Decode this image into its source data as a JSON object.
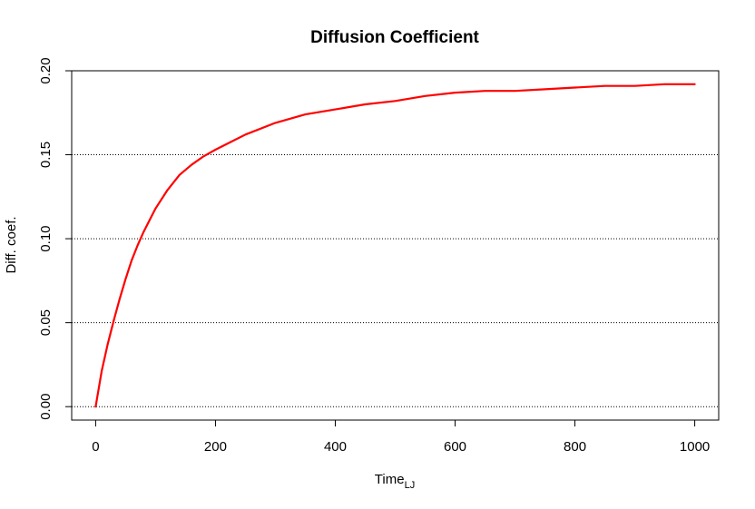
{
  "chart_data": {
    "type": "line",
    "title": "Diffusion Coefficient",
    "xlabel": "Time",
    "xlabel_subscript": "LJ",
    "ylabel": "Diff. coef.",
    "xlim": [
      -40,
      1040
    ],
    "ylim": [
      -0.008,
      0.2
    ],
    "x_ticks": [
      0,
      200,
      400,
      600,
      800,
      1000
    ],
    "y_ticks": [
      0.0,
      0.05,
      0.1,
      0.15,
      0.2
    ],
    "x_tick_labels": [
      "0",
      "200",
      "400",
      "600",
      "800",
      "1000"
    ],
    "y_tick_labels": [
      "0.00",
      "0.05",
      "0.10",
      "0.15",
      "0.20"
    ],
    "grid": "horizontal-dotted",
    "series": [
      {
        "color": "#ff0000",
        "x": [
          0,
          10,
          20,
          30,
          40,
          50,
          60,
          70,
          80,
          100,
          120,
          140,
          160,
          180,
          200,
          250,
          300,
          350,
          400,
          450,
          500,
          550,
          600,
          650,
          700,
          750,
          800,
          850,
          900,
          950,
          1000
        ],
        "y": [
          0.0,
          0.021,
          0.037,
          0.051,
          0.064,
          0.076,
          0.087,
          0.096,
          0.104,
          0.118,
          0.129,
          0.138,
          0.144,
          0.149,
          0.153,
          0.162,
          0.169,
          0.174,
          0.177,
          0.18,
          0.182,
          0.185,
          0.187,
          0.188,
          0.188,
          0.189,
          0.19,
          0.191,
          0.191,
          0.192,
          0.192
        ]
      }
    ]
  }
}
